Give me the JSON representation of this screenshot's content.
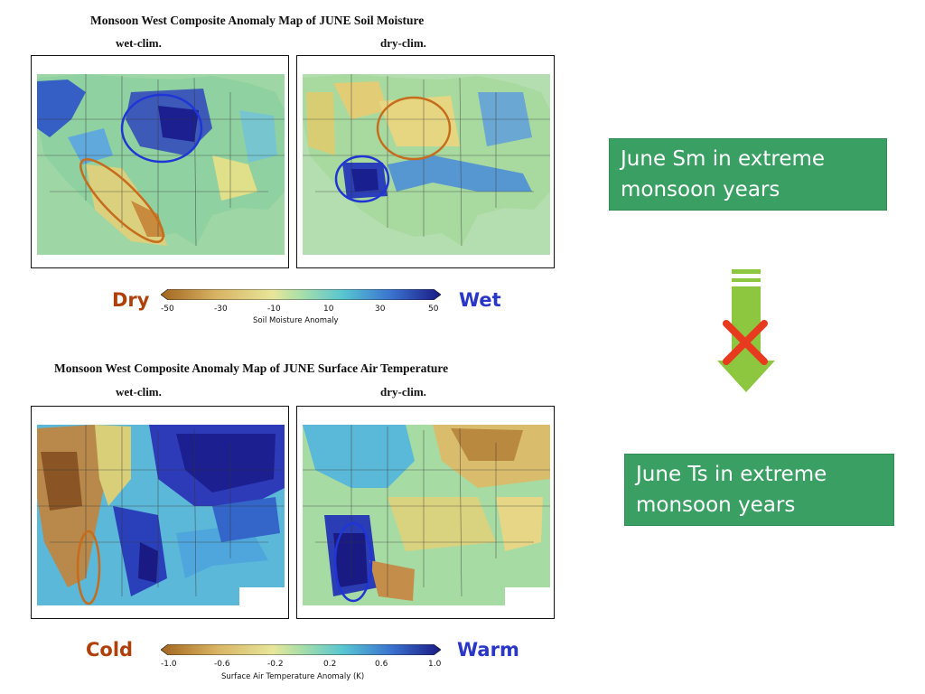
{
  "top": {
    "title": "Monsoon West Composite Anomaly Map of JUNE Soil Moisture",
    "left_panel": "wet-clim.",
    "right_panel": "dry-clim.",
    "colorbar": {
      "ticks": [
        "-50",
        "-30",
        "-10",
        "10",
        "30",
        "50"
      ],
      "label": "Soil Moisture Anomaly",
      "left_word": "Dry",
      "right_word": "Wet",
      "left_color": "#b0400a",
      "right_color": "#2a36c8"
    }
  },
  "bottom": {
    "title": "Monsoon West Composite Anomaly Map of JUNE Surface Air Temperature",
    "left_panel": "wet-clim.",
    "right_panel": "dry-clim.",
    "colorbar": {
      "ticks": [
        "-1.0",
        "-0.6",
        "-0.2",
        "0.2",
        "0.6",
        "1.0"
      ],
      "label": "Surface Air Temperature Anomaly (K)",
      "left_word": "Cold",
      "right_word": "Warm",
      "left_color": "#b0400a",
      "right_color": "#2a36c8"
    }
  },
  "callouts": {
    "sm": "June Sm  in extreme monsoon years",
    "ts": "June Ts  in extreme monsoon years"
  },
  "arrow": {
    "color": "#8dc63f",
    "cross_color": "#e83a1f",
    "icon": "arrow-down-icon"
  }
}
